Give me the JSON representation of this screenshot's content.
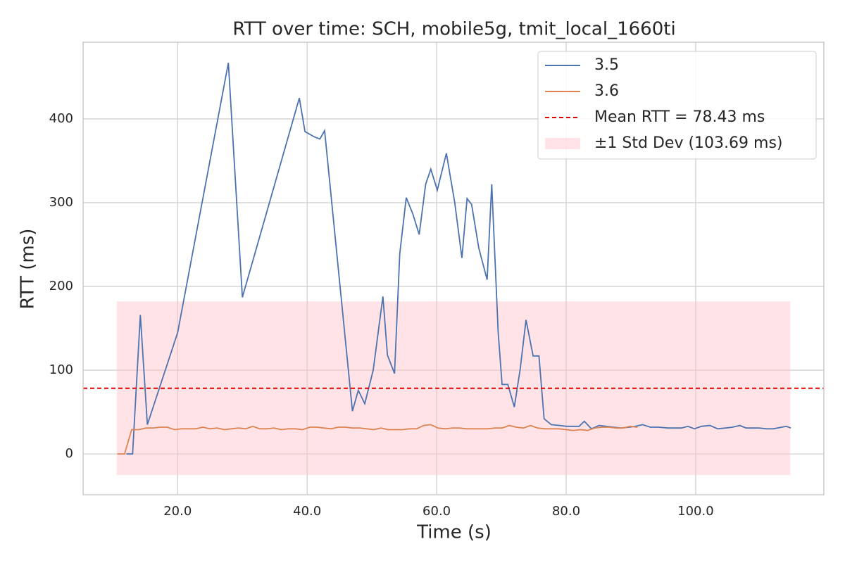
{
  "chart_data": {
    "type": "line",
    "title": "RTT over time: SCH, mobile5g, tmit_local_1660ti",
    "x_label": "Time (s)",
    "y_label": "RTT (ms)",
    "xlim": [
      5.4,
      119.8
    ],
    "ylim": [
      -48.7,
      491.6
    ],
    "xticks": [
      {
        "value": 20,
        "label": "20.0"
      },
      {
        "value": 40,
        "label": "40.0"
      },
      {
        "value": 60,
        "label": "60.0"
      },
      {
        "value": 80,
        "label": "80.0"
      },
      {
        "value": 100,
        "label": "100.0"
      }
    ],
    "yticks": [
      0,
      100,
      200,
      300,
      400
    ],
    "grid": true,
    "legend": "upper right",
    "series": [
      {
        "name": "3.5",
        "color": "#4c72b0",
        "x": [
          12.07,
          13.04,
          14.24,
          15.33,
          20,
          27.83,
          30,
          38.8,
          39.67,
          41,
          41.96,
          42.7,
          47,
          47.9,
          48.9,
          50.2,
          51.7,
          52.4,
          53.5,
          54.3,
          55.3,
          56.3,
          57.3,
          58.3,
          59.1,
          60.1,
          61.5,
          62.8,
          63.9,
          64.7,
          65.4,
          66.5,
          67.8,
          68.5,
          69.5,
          70.1,
          71.0,
          72.0,
          72.9,
          73.8,
          74.9,
          75.8,
          76.6,
          77.7,
          79.0,
          80.1,
          81.2,
          82.0,
          82.8,
          83.9,
          85.1,
          86.2,
          87.3,
          88.5,
          89.7,
          90.7,
          91.8,
          93.0,
          94.3,
          95.7,
          96.7,
          97.8,
          98.8,
          99.8,
          100.9,
          102.2,
          103.4,
          104.6,
          105.7,
          106.8,
          107.8,
          109.8,
          110.9,
          112.0,
          113.3,
          114.0,
          114.7
        ],
        "values": [
          0,
          0,
          166,
          35,
          145,
          467,
          187,
          425,
          385,
          379,
          376,
          386,
          51,
          76,
          60,
          100,
          188,
          118,
          96,
          239,
          306,
          287,
          262,
          322,
          340,
          315,
          359,
          300,
          234,
          305,
          298,
          246,
          208,
          322,
          145,
          83,
          83,
          56,
          101,
          160,
          117,
          117,
          42,
          35,
          34,
          33,
          33,
          33,
          39,
          30,
          34,
          33,
          32,
          31,
          32,
          33,
          35,
          32,
          32,
          31,
          31,
          31,
          33,
          30,
          33,
          34,
          30,
          31,
          32,
          34,
          31,
          31,
          30,
          30,
          32,
          33,
          31
        ]
      },
      {
        "name": "3.6",
        "color": "#dd8452",
        "x": [
          10.7,
          11.8,
          12.9,
          14.0,
          15.1,
          16.2,
          17.3,
          18.4,
          19.5,
          20.6,
          21.7,
          22.8,
          23.9,
          25.0,
          26.1,
          27.2,
          28.3,
          29.4,
          30.5,
          31.6,
          32.7,
          33.8,
          34.9,
          36.0,
          37.1,
          38.2,
          39.3,
          40.4,
          41.5,
          42.6,
          43.7,
          44.8,
          45.9,
          47.0,
          48.1,
          49.2,
          50.3,
          51.4,
          52.5,
          53.6,
          54.7,
          55.8,
          56.9,
          58.0,
          59.1,
          60.2,
          61.3,
          62.4,
          63.5,
          64.6,
          65.7,
          66.8,
          67.9,
          69.0,
          70.1,
          71.2,
          72.3,
          73.4,
          74.5,
          75.6,
          76.7,
          77.8,
          78.9,
          80.0,
          81.1,
          82.2,
          83.3,
          84.4,
          85.5,
          86.6,
          87.7,
          88.8,
          89.9,
          91.0
        ],
        "values": [
          0,
          0,
          29,
          29,
          31,
          31,
          32,
          32,
          29,
          30,
          30,
          30,
          32,
          30,
          31,
          29,
          30,
          31,
          30,
          33,
          30,
          30,
          31,
          29,
          30,
          30,
          29,
          32,
          32,
          31,
          30,
          32,
          32,
          31,
          31,
          30,
          29,
          31,
          29,
          29,
          29,
          30,
          30,
          34,
          35,
          31,
          30,
          31,
          31,
          30,
          30,
          30,
          30,
          31,
          31,
          34,
          32,
          31,
          34,
          31,
          30,
          30,
          30,
          29,
          28,
          29,
          28,
          31,
          32,
          32,
          31,
          31,
          33,
          32
        ]
      }
    ],
    "mean_line": {
      "value": 78.43,
      "label": "Mean RTT = 78.43 ms",
      "color": "#e00000"
    },
    "std_band": {
      "label": "±1 Std Dev (103.69 ms)",
      "color": "#ffc0c8",
      "xlim": [
        10.6,
        114.6
      ],
      "ylim": [
        -25.26,
        182.12
      ]
    }
  }
}
